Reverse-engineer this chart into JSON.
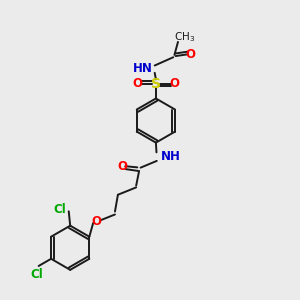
{
  "bg_color": "#ebebeb",
  "bond_color": "#1a1a1a",
  "colors": {
    "N": "#0000cd",
    "O": "#ff0000",
    "S": "#cccc00",
    "Cl": "#00aa00",
    "C": "#1a1a1a",
    "H": "#708090"
  },
  "font_size": 8.5,
  "line_width": 1.4
}
